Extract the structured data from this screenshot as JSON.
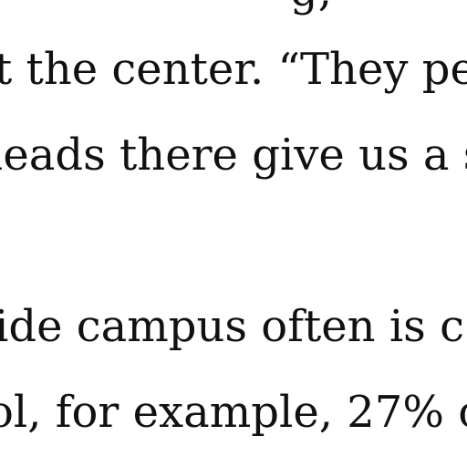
{
  "article": {
    "lines": [
      {
        "text": "g,"
      },
      {
        "text": "t the center. “They pe"
      },
      {
        "text": "leads there give us a s"
      },
      {
        "text": "ide campus often is c"
      },
      {
        "text": "ol, for example, 27% o"
      }
    ]
  }
}
